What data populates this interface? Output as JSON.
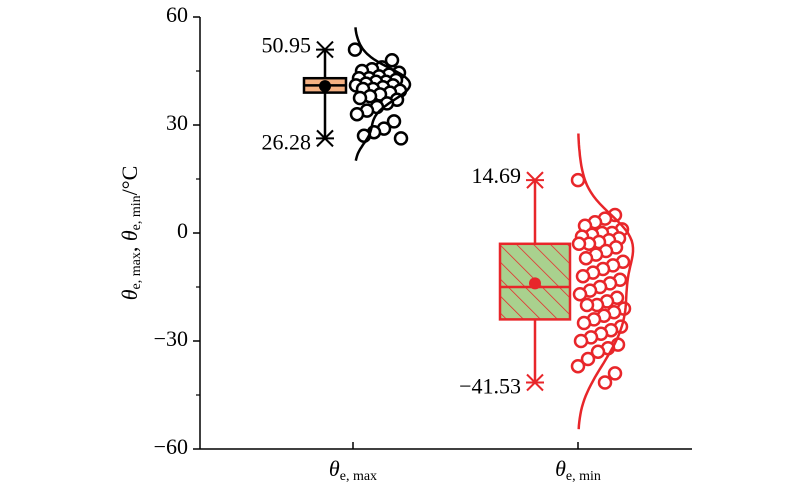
{
  "chart_data": {
    "type": "box",
    "ylabel": [
      "θ",
      "e, max",
      ", ",
      "θ",
      "e, min",
      "/°C"
    ],
    "categories": [
      {
        "symbol": "θ",
        "subscript": "e, max"
      },
      {
        "symbol": "θ",
        "subscript": "e, min"
      }
    ],
    "ylim": [
      -60,
      60
    ],
    "yticks": [
      {
        "value": -60,
        "label": "−60"
      },
      {
        "value": -30,
        "label": "−30"
      },
      0,
      30,
      60
    ],
    "series": [
      {
        "color": "#000000",
        "fill": "#f4b183",
        "hatch": false,
        "min": 26.28,
        "q1": 39,
        "median": 41,
        "q3": 43,
        "max": 50.95,
        "mean": 40.8,
        "points": [
          50.95,
          48,
          46,
          45.5,
          45,
          44.5,
          44,
          43.5,
          43,
          43,
          42.5,
          42,
          42,
          41.5,
          41,
          41,
          40.5,
          40,
          40,
          39.5,
          39,
          38.5,
          38,
          37.5,
          37,
          36,
          35,
          34,
          33,
          31,
          29,
          28,
          27,
          26.28
        ]
      },
      {
        "color": "#e8262a",
        "fill": "#a9d18e",
        "hatch": true,
        "min": -41.53,
        "q1": -24,
        "median": -15,
        "q3": -3,
        "max": 14.69,
        "mean": -14,
        "value_labels": {
          "min": "−41.53"
        },
        "points": [
          14.69,
          5,
          4,
          3,
          2,
          1,
          0,
          0,
          -0.5,
          -1,
          -1.5,
          -2,
          -2.5,
          -3,
          -3,
          -4,
          -5,
          -6,
          -7,
          -8,
          -9,
          -10,
          -11,
          -12,
          -13,
          -14,
          -15,
          -16,
          -17,
          -18,
          -19,
          -20,
          -20,
          -21,
          -22,
          -23,
          -24,
          -25,
          -26,
          -27,
          -28,
          -29,
          -30,
          -31,
          -32,
          -33,
          -35,
          -37,
          -39,
          -41.53
        ]
      }
    ]
  }
}
